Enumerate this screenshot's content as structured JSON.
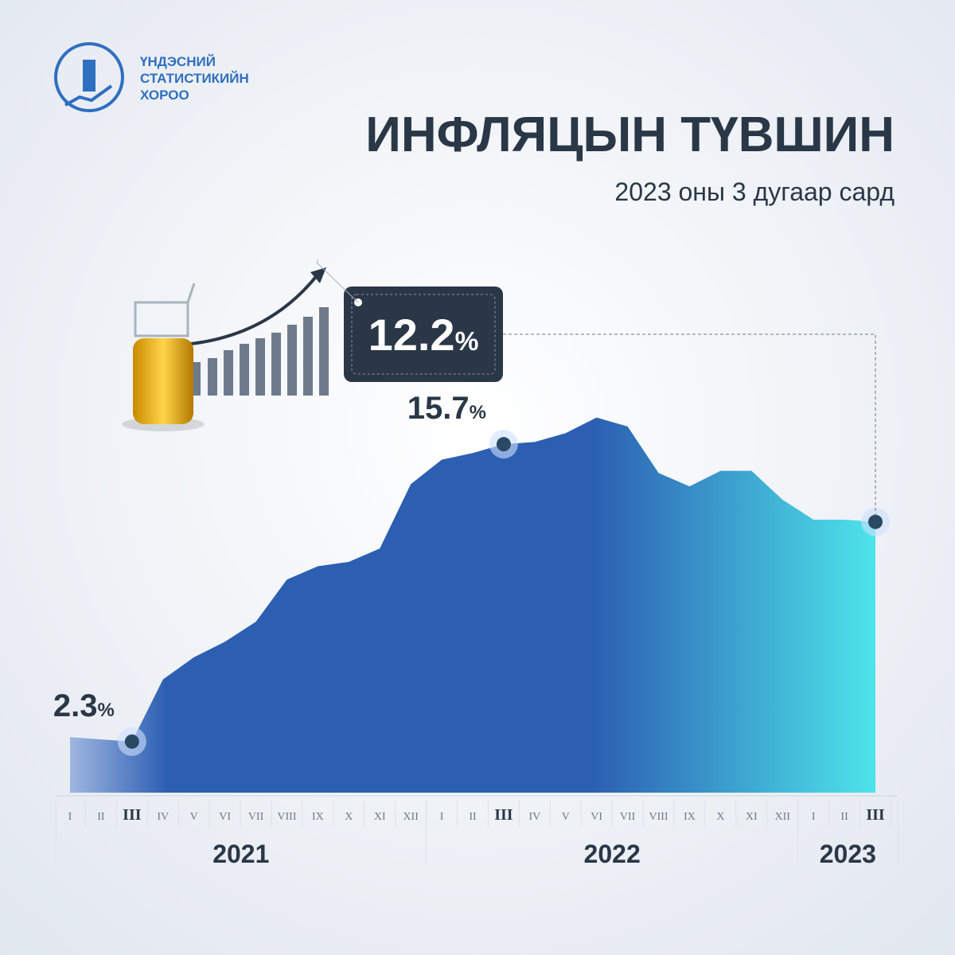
{
  "logo": {
    "lines": [
      "ҮНДЭСНИЙ",
      "СТАТИСТИКИЙН",
      "ХОРОО"
    ]
  },
  "chart_data": {
    "type": "area",
    "title": "ИНФЛЯЦЫН ТҮВШИН",
    "subtitle": "2023 оны 3 дугаар сард",
    "categories": [
      "I",
      "II",
      "III",
      "IV",
      "V",
      "VI",
      "VII",
      "VIII",
      "IX",
      "X",
      "XI",
      "XII",
      "I",
      "II",
      "III",
      "IV",
      "V",
      "VI",
      "VII",
      "VIII",
      "IX",
      "X",
      "XI",
      "XII",
      "I",
      "II",
      "III"
    ],
    "years": [
      "2021",
      "2022",
      "2023"
    ],
    "values": [
      2.5,
      2.4,
      2.3,
      5.1,
      6.1,
      6.8,
      7.7,
      9.6,
      10.2,
      10.4,
      11.0,
      13.9,
      15.0,
      15.3,
      15.7,
      15.8,
      16.2,
      16.9,
      16.5,
      14.4,
      13.8,
      14.5,
      14.5,
      13.2,
      12.3,
      12.3,
      12.2
    ],
    "value_labels": [
      null,
      null,
      "2.3%",
      null,
      null,
      null,
      null,
      null,
      null,
      null,
      null,
      null,
      null,
      null,
      "15.7%",
      null,
      null,
      null,
      null,
      null,
      null,
      null,
      null,
      null,
      null,
      null,
      "12.2%"
    ],
    "ylim": [
      0,
      18
    ],
    "colors": [
      "#9fb6e0",
      "#2c5fb2",
      "#4de4ea"
    ]
  }
}
